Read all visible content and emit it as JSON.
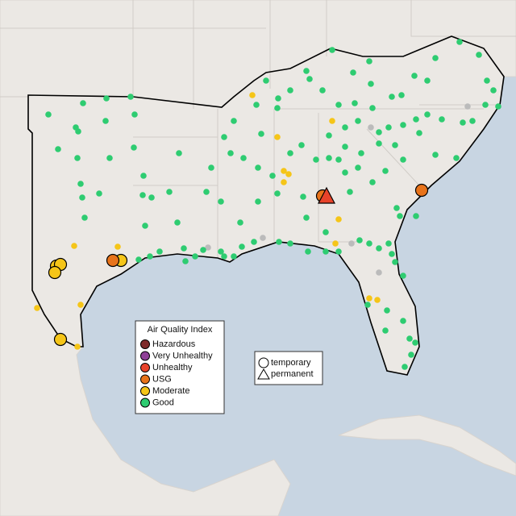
{
  "legend": {
    "title": "Air Quality Index",
    "items": [
      {
        "label": "Hazardous",
        "color": "#7e2a2a"
      },
      {
        "label": "Very Unhealthy",
        "color": "#8f3f97"
      },
      {
        "label": "Unhealthy",
        "color": "#e8432a"
      },
      {
        "label": "USG",
        "color": "#e8731a"
      },
      {
        "label": "Moderate",
        "color": "#f5c518"
      },
      {
        "label": "Good",
        "color": "#2ecc71"
      }
    ]
  },
  "shape_legend": {
    "items": [
      "temporary",
      "permanent"
    ]
  }
}
